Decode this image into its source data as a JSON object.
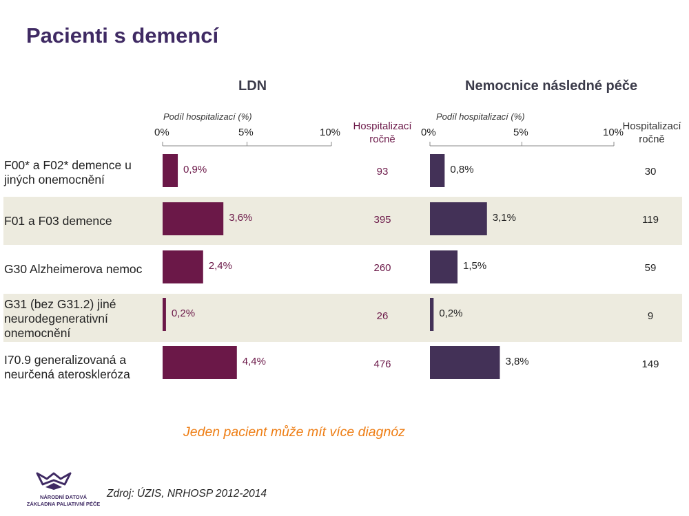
{
  "page": {
    "title": "Pacienti s demencí",
    "note": "Jeden pacient může mít více diagnóz",
    "source": "Zdroj: ÚZIS, NRHOSP 2012-2014",
    "logo": {
      "line1": "NÁRODNÍ DATOVÁ",
      "line2": "ZÁKLADNA PALIATIVNÍ PÉČE"
    }
  },
  "colors": {
    "title": "#3f2a63",
    "ldn_bar": "#6b1848",
    "ldn_text": "#6b1848",
    "nnp_bar": "#433157",
    "band": "#edebdf",
    "note": "#ee7d13"
  },
  "chart_data": [
    {
      "type": "bar",
      "title": "LDN",
      "xlabel": "Podíl hospitalizací (%)",
      "ticks": [
        "0%",
        "5%",
        "10%"
      ],
      "xlim": [
        0,
        10
      ],
      "count_header": [
        "Hospitalizací",
        "ročně"
      ],
      "categories": [
        [
          "F00* a F02* demence u",
          "jiných onemocnění"
        ],
        [
          "F01 a F03 demence"
        ],
        [
          "G30 Alzheimerova nemoc"
        ],
        [
          "G31 (bez G31.2) jiné",
          "neurodegenerativní",
          "onemocnění"
        ],
        [
          "I70.9 generalizovaná a",
          "neurčená ateroskleróza"
        ]
      ],
      "values": [
        0.9,
        3.6,
        2.4,
        0.2,
        4.4
      ],
      "value_labels": [
        "0,9%",
        "3,6%",
        "2,4%",
        "0,2%",
        "4,4%"
      ],
      "counts": [
        "93",
        "395",
        "260",
        "26",
        "476"
      ]
    },
    {
      "type": "bar",
      "title": "Nemocnice následné péče",
      "xlabel": "Podíl hospitalizací (%)",
      "ticks": [
        "0%",
        "5%",
        "10%"
      ],
      "xlim": [
        0,
        10
      ],
      "count_header": [
        "Hospitalizací",
        "ročně"
      ],
      "values": [
        0.8,
        3.1,
        1.5,
        0.2,
        3.8
      ],
      "value_labels": [
        "0,8%",
        "3,1%",
        "1,5%",
        "0,2%",
        "3,8%"
      ],
      "counts": [
        "30",
        "119",
        "59",
        "9",
        "149"
      ]
    }
  ]
}
